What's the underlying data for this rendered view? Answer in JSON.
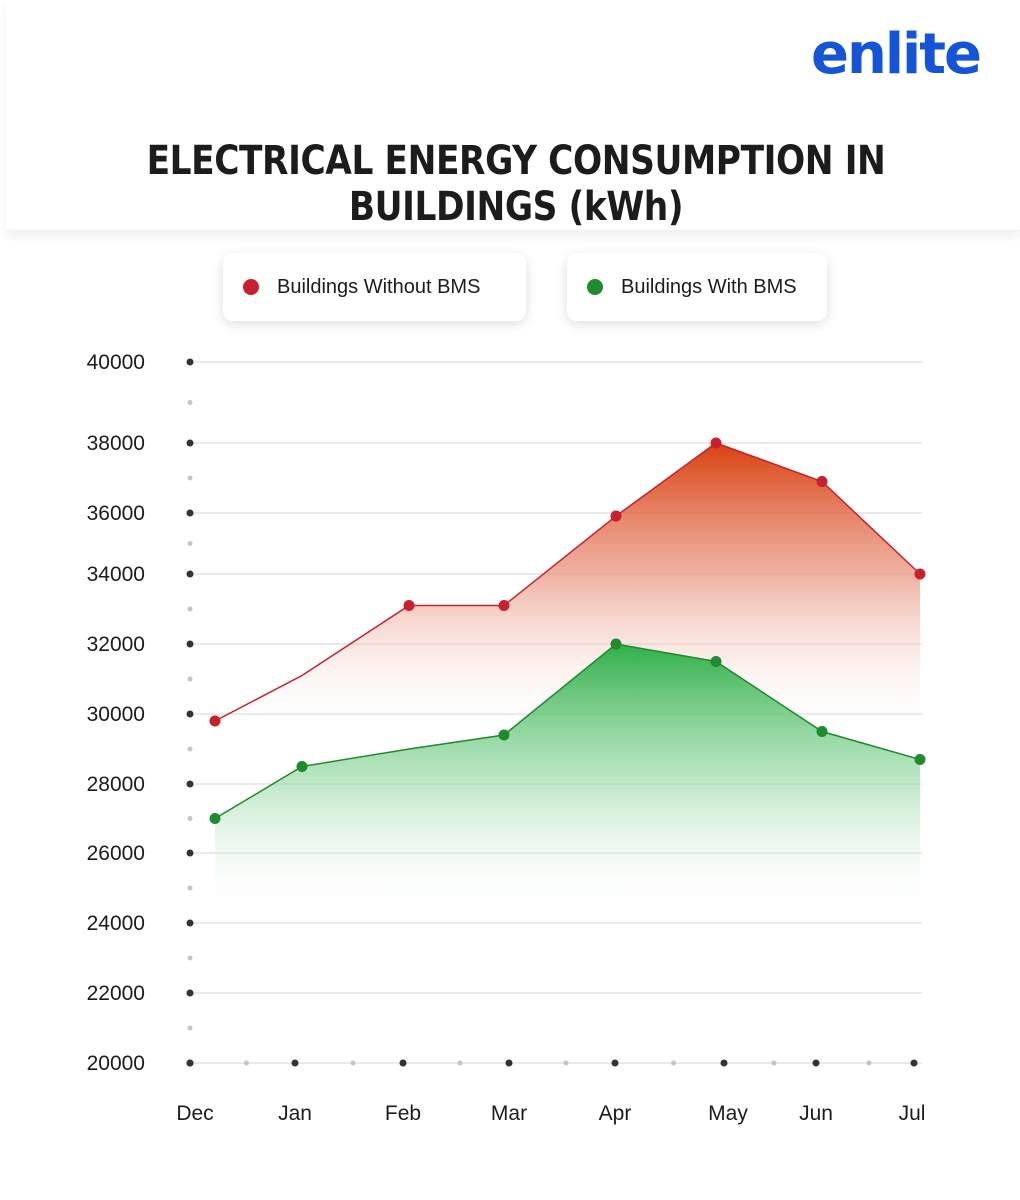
{
  "header": {
    "logo": "enlite",
    "title": "ELECTRICAL ENERGY CONSUMPTION IN BUILDINGS (kWh)"
  },
  "colors": {
    "without_bms": "#c8202e",
    "with_bms": "#1f8a2e",
    "without_fill": "#e04a1e",
    "with_fill": "#2fb04a",
    "logo": "#1554d6"
  },
  "chart_data": {
    "type": "area",
    "title": "ELECTRICAL ENERGY CONSUMPTION IN BUILDINGS (kWh)",
    "categories": [
      "Dec",
      "Jan",
      "Feb",
      "Mar",
      "Apr",
      "May",
      "Jun",
      "Jul"
    ],
    "yticks": [
      40000,
      38000,
      36000,
      34000,
      32000,
      30000,
      28000,
      26000,
      24000,
      22000,
      20000
    ],
    "ylim": [
      20000,
      40000
    ],
    "grid": true,
    "legend_position": "top",
    "series": [
      {
        "name": "Buildings Without BMS",
        "color": "#c8202e",
        "points": [
          {
            "label": "Dec",
            "value": 29800
          },
          {
            "label": "Jan",
            "value": 31100,
            "marker": false
          },
          {
            "label": "Feb",
            "value": 33100
          },
          {
            "label": "Mar",
            "value": 33100
          },
          {
            "label": "Apr",
            "value": 35900
          },
          {
            "label": "May",
            "value": 38000
          },
          {
            "label": "Jun",
            "value": 36900
          },
          {
            "label": "Jul",
            "value": 34000
          }
        ]
      },
      {
        "name": "Buildings With BMS",
        "color": "#1f8a2e",
        "points": [
          {
            "label": "Dec",
            "value": 27000
          },
          {
            "label": "Jan",
            "value": 28500
          },
          {
            "label": "Feb",
            "value": 29000,
            "marker": false
          },
          {
            "label": "Mar",
            "value": 29400
          },
          {
            "label": "Apr",
            "value": 32000
          },
          {
            "label": "May",
            "value": 31500
          },
          {
            "label": "Jun",
            "value": 29500
          },
          {
            "label": "Jul",
            "value": 28700
          }
        ]
      }
    ]
  }
}
